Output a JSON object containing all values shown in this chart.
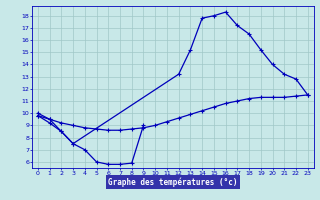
{
  "title": "",
  "xlabel": "Graphe des températures (°c)",
  "bg_color": "#c8e8e8",
  "grid_color": "#a0c8c8",
  "line_color": "#0000bb",
  "xlabel_bg": "#3333aa",
  "xlabel_fg": "#ffffff",
  "ylim": [
    5.5,
    18.8
  ],
  "xlim": [
    -0.5,
    23.5
  ],
  "yticks": [
    6,
    7,
    8,
    9,
    10,
    11,
    12,
    13,
    14,
    15,
    16,
    17,
    18
  ],
  "xticks": [
    0,
    1,
    2,
    3,
    4,
    5,
    6,
    7,
    8,
    9,
    10,
    11,
    12,
    13,
    14,
    15,
    16,
    17,
    18,
    19,
    20,
    21,
    22,
    23
  ],
  "curve_upper_x": [
    0,
    1,
    2,
    3,
    12,
    13,
    14,
    15,
    16,
    17,
    18,
    19,
    20,
    21,
    22,
    23
  ],
  "curve_upper_y": [
    10.0,
    9.5,
    8.5,
    7.5,
    13.2,
    15.2,
    17.8,
    18.0,
    18.3,
    17.2,
    16.5,
    15.2,
    14.0,
    13.2,
    12.8,
    11.5
  ],
  "curve_mid_x": [
    0,
    1,
    2,
    3,
    4,
    5,
    6,
    7,
    8,
    9,
    10,
    11,
    12,
    13,
    14,
    15,
    16,
    17,
    18,
    19,
    20,
    21,
    22,
    23
  ],
  "curve_mid_y": [
    9.8,
    9.5,
    9.2,
    9.0,
    8.8,
    8.7,
    8.6,
    8.6,
    8.7,
    8.8,
    9.0,
    9.3,
    9.6,
    9.9,
    10.2,
    10.5,
    10.8,
    11.0,
    11.2,
    11.3,
    11.3,
    11.3,
    11.4,
    11.5
  ],
  "curve_lower_x": [
    0,
    1,
    2,
    3,
    4,
    5,
    6,
    7,
    8,
    9
  ],
  "curve_lower_y": [
    9.8,
    9.2,
    8.5,
    7.5,
    7.0,
    6.0,
    5.8,
    5.8,
    5.9,
    9.0
  ]
}
